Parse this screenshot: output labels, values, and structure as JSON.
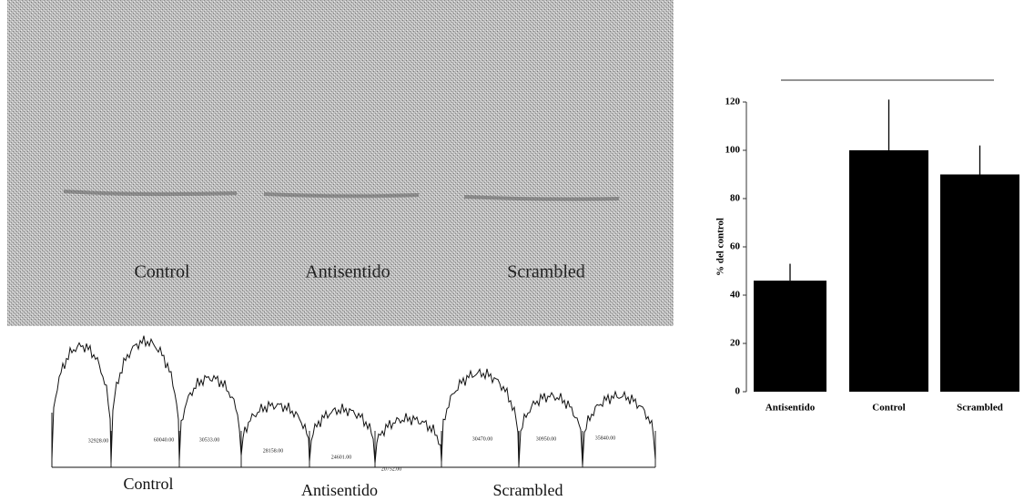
{
  "blot": {
    "labels": [
      "Control",
      "Antisentido",
      "Scrambled"
    ]
  },
  "traces": {
    "labels": [
      "Control",
      "Antisentido",
      "Scrambled"
    ],
    "peak_values": [
      "32928.00",
      "60040.00",
      "30533.00",
      "28158.00",
      "24601.00",
      "20752.00",
      "30470.00",
      "30950.00",
      "35840.00"
    ]
  },
  "chart_data": {
    "type": "bar",
    "y_label": "% del control",
    "categories": [
      "Antisentido",
      "Control",
      "Scrambled"
    ],
    "values": [
      46,
      100,
      90
    ],
    "errors": [
      7,
      21,
      12
    ],
    "color": "#000000",
    "ylim": [
      0,
      120
    ],
    "yticks": [
      0,
      20,
      40,
      60,
      80,
      100,
      120
    ]
  }
}
